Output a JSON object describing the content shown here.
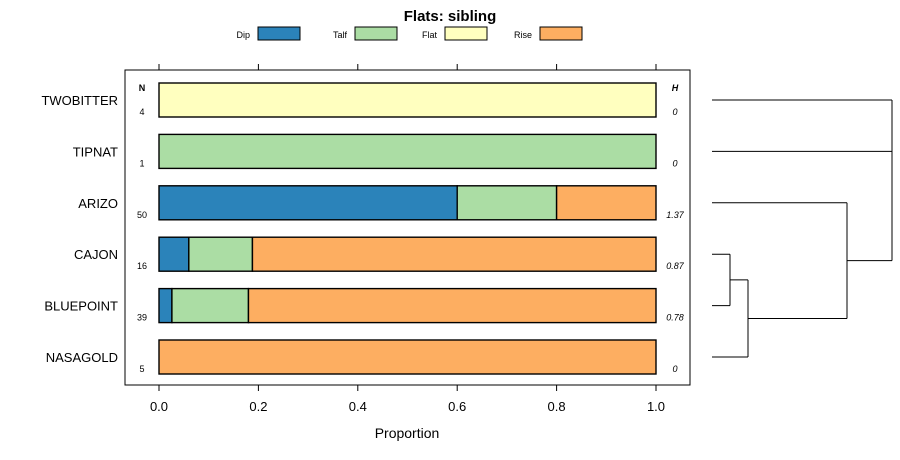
{
  "chart_data": {
    "type": "bar",
    "orientation": "horizontal",
    "stacked": true,
    "title": "Flats: sibling",
    "xlabel": "Proportion",
    "ylabel": "",
    "xlim": [
      0,
      1
    ],
    "x_ticks": [
      0.0,
      0.2,
      0.4,
      0.6,
      0.8,
      1.0
    ],
    "x_tick_labels": [
      "0.0",
      "0.2",
      "0.4",
      "0.6",
      "0.8",
      "1.0"
    ],
    "legend": {
      "placement": "top",
      "entries": [
        {
          "name": "Dip",
          "color": "#2b83ba"
        },
        {
          "name": "Talf",
          "color": "#abdda4"
        },
        {
          "name": "Flat",
          "color": "#ffffbf"
        },
        {
          "name": "Rise",
          "color": "#fdae61"
        }
      ]
    },
    "n_header": "N",
    "h_header": "H",
    "categories": [
      "TWOBITTER",
      "TIPNAT",
      "ARIZO",
      "CAJON",
      "BLUEPOINT",
      "NASAGOLD"
    ],
    "n_values": [
      "4",
      "1",
      "50",
      "16",
      "39",
      "5"
    ],
    "h_values": [
      "0",
      "0",
      "1.37",
      "0.87",
      "0.78",
      "0"
    ],
    "series": [
      {
        "name": "Dip",
        "values": [
          0,
          0,
          0.6,
          0.06,
          0.026,
          0
        ]
      },
      {
        "name": "Talf",
        "values": [
          0,
          1,
          0.2,
          0.128,
          0.154,
          0
        ]
      },
      {
        "name": "Flat",
        "values": [
          1,
          0,
          0,
          0,
          0,
          0
        ]
      },
      {
        "name": "Rise",
        "values": [
          0,
          0,
          0.2,
          0.812,
          0.82,
          1
        ]
      }
    ],
    "dendrogram": {
      "leaves": [
        "TWOBITTER",
        "TIPNAT",
        "ARIZO",
        "CAJON",
        "BLUEPOINT",
        "NASAGOLD"
      ],
      "merges": [
        {
          "left": "CAJON",
          "right": "BLUEPOINT",
          "height": 0.1
        },
        {
          "left": "CAJON+BLUEPOINT",
          "right": "NASAGOLD",
          "height": 0.2
        },
        {
          "left": "ARIZO",
          "right": "CAJON+BLUEPOINT+NASAGOLD",
          "height": 0.75
        },
        {
          "left": "TIPNAT",
          "right": "ARIZO+CAJON+BLUEPOINT+NASAGOLD",
          "height": 1.0
        },
        {
          "left": "TWOBITTER",
          "right": "TIPNAT+ARIZO+CAJON+BLUEPOINT+NASAGOLD",
          "height": 1.0
        }
      ]
    }
  }
}
